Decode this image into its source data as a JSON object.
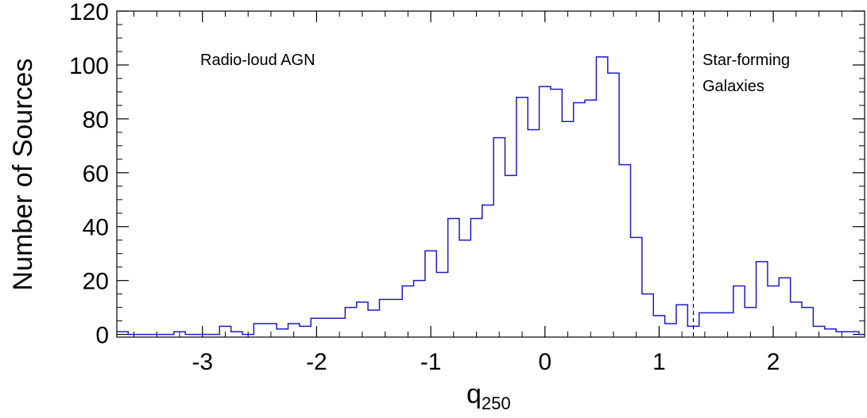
{
  "chart_data": {
    "type": "histogram",
    "xlabel_main": "q",
    "xlabel_sub": "250",
    "ylabel": "Number of Sources",
    "xlim": [
      -3.75,
      2.8
    ],
    "ylim": [
      -1,
      120
    ],
    "x_ticks": [
      -3,
      -2,
      -1,
      0,
      1,
      2
    ],
    "x_tick_labels": [
      "-3",
      "-2",
      "-1",
      "0",
      "1",
      "2"
    ],
    "y_ticks": [
      0,
      20,
      40,
      60,
      80,
      100,
      120
    ],
    "y_tick_labels": [
      "0",
      "20",
      "40",
      "60",
      "80",
      "100",
      "120"
    ],
    "grid": false,
    "line_color": "#1c1cc8",
    "bin_width": 0.1,
    "bins": [
      {
        "x": -3.75,
        "y": 1
      },
      {
        "x": -3.65,
        "y": 0
      },
      {
        "x": -3.55,
        "y": 0
      },
      {
        "x": -3.45,
        "y": 0
      },
      {
        "x": -3.35,
        "y": 0
      },
      {
        "x": -3.25,
        "y": 1
      },
      {
        "x": -3.15,
        "y": 0
      },
      {
        "x": -3.05,
        "y": 0
      },
      {
        "x": -2.95,
        "y": 0
      },
      {
        "x": -2.85,
        "y": 3
      },
      {
        "x": -2.75,
        "y": 1
      },
      {
        "x": -2.65,
        "y": 0
      },
      {
        "x": -2.55,
        "y": 4
      },
      {
        "x": -2.45,
        "y": 4
      },
      {
        "x": -2.35,
        "y": 2
      },
      {
        "x": -2.25,
        "y": 4
      },
      {
        "x": -2.15,
        "y": 3
      },
      {
        "x": -2.05,
        "y": 6
      },
      {
        "x": -1.95,
        "y": 6
      },
      {
        "x": -1.85,
        "y": 6
      },
      {
        "x": -1.75,
        "y": 10
      },
      {
        "x": -1.65,
        "y": 12
      },
      {
        "x": -1.55,
        "y": 9
      },
      {
        "x": -1.45,
        "y": 13
      },
      {
        "x": -1.35,
        "y": 13
      },
      {
        "x": -1.25,
        "y": 18
      },
      {
        "x": -1.15,
        "y": 20
      },
      {
        "x": -1.05,
        "y": 31
      },
      {
        "x": -0.95,
        "y": 23
      },
      {
        "x": -0.85,
        "y": 43
      },
      {
        "x": -0.75,
        "y": 35
      },
      {
        "x": -0.65,
        "y": 43
      },
      {
        "x": -0.55,
        "y": 48
      },
      {
        "x": -0.45,
        "y": 73
      },
      {
        "x": -0.35,
        "y": 59
      },
      {
        "x": -0.25,
        "y": 88
      },
      {
        "x": -0.15,
        "y": 76
      },
      {
        "x": -0.05,
        "y": 92
      },
      {
        "x": 0.05,
        "y": 91
      },
      {
        "x": 0.15,
        "y": 79
      },
      {
        "x": 0.25,
        "y": 86
      },
      {
        "x": 0.35,
        "y": 87
      },
      {
        "x": 0.45,
        "y": 103
      },
      {
        "x": 0.55,
        "y": 97
      },
      {
        "x": 0.65,
        "y": 63
      },
      {
        "x": 0.75,
        "y": 36
      },
      {
        "x": 0.85,
        "y": 15
      },
      {
        "x": 0.95,
        "y": 7
      },
      {
        "x": 1.05,
        "y": 4
      },
      {
        "x": 1.15,
        "y": 11
      },
      {
        "x": 1.25,
        "y": 3
      },
      {
        "x": 1.35,
        "y": 8
      },
      {
        "x": 1.45,
        "y": 8
      },
      {
        "x": 1.55,
        "y": 8
      },
      {
        "x": 1.65,
        "y": 18
      },
      {
        "x": 1.75,
        "y": 10
      },
      {
        "x": 1.85,
        "y": 27
      },
      {
        "x": 1.95,
        "y": 18
      },
      {
        "x": 2.05,
        "y": 21
      },
      {
        "x": 2.15,
        "y": 12
      },
      {
        "x": 2.25,
        "y": 10
      },
      {
        "x": 2.35,
        "y": 3
      },
      {
        "x": 2.45,
        "y": 2
      },
      {
        "x": 2.55,
        "y": 1
      },
      {
        "x": 2.65,
        "y": 1
      },
      {
        "x": 2.75,
        "y": 0
      }
    ],
    "divider_x": 1.3,
    "annotations": [
      {
        "id": "radio-loud",
        "lines": [
          "Radio-loud AGN"
        ]
      },
      {
        "id": "star-forming",
        "lines": [
          "Star-forming",
          "Galaxies"
        ]
      }
    ]
  }
}
